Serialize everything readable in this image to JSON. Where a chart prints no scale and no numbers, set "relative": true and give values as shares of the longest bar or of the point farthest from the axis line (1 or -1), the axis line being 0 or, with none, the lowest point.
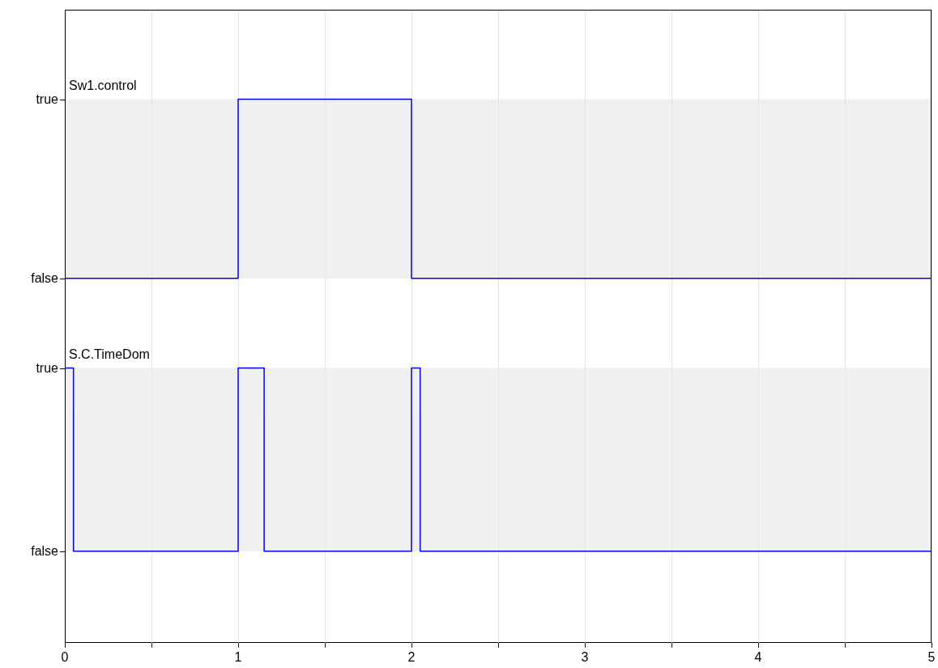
{
  "chart_data": [
    {
      "type": "step",
      "relative": true,
      "tick_labels": "y",
      "series": [
        {
          "name": "Sw1.control",
          "color": "#0000ff",
          "x": [
            0,
            1,
            2,
            5
          ],
          "values": [
            0,
            1,
            0,
            0
          ]
        }
      ],
      "xlim": [
        0,
        5
      ],
      "xticks": [
        0,
        {
          "value": 0.5,
          "label": null
        },
        1,
        {
          "value": 1.5,
          "label": null
        },
        2,
        {
          "value": 2.5,
          "label": null
        },
        3,
        {
          "value": 3.5,
          "label": null
        },
        4,
        {
          "value": 4.5,
          "label": null
        },
        5
      ],
      "annotations": [
        "true",
        "false"
      ],
      "grid": "x",
      "legend": false,
      "line_style": "solid",
      "marker": "none"
    },
    {
      "type": "step",
      "relative": true,
      "series": [
        {
          "name": "S.C.TimeDom",
          "color": "#0000ff",
          "x": [
            0,
            0.05,
            1,
            1.15,
            2,
            2.05,
            5
          ],
          "values": [
            1,
            0,
            1,
            0,
            1,
            0,
            0
          ]
        }
      ],
      "xlim": [
        0,
        5
      ],
      "xticks": [
        0,
        {
          "value": 0.5,
          "label": null
        },
        1,
        {
          "value": 1.5,
          "label": null
        },
        2,
        {
          "value": 2.5,
          "label": null
        },
        3,
        {
          "value": 3.5,
          "label": null
        },
        4,
        {
          "value": 4.5,
          "label": null
        },
        5
      ],
      "annotations": [
        "true",
        "false"
      ],
      "grid": "x",
      "legend": false,
      "line_style": "solid",
      "marker": "none"
    }
  ]
}
